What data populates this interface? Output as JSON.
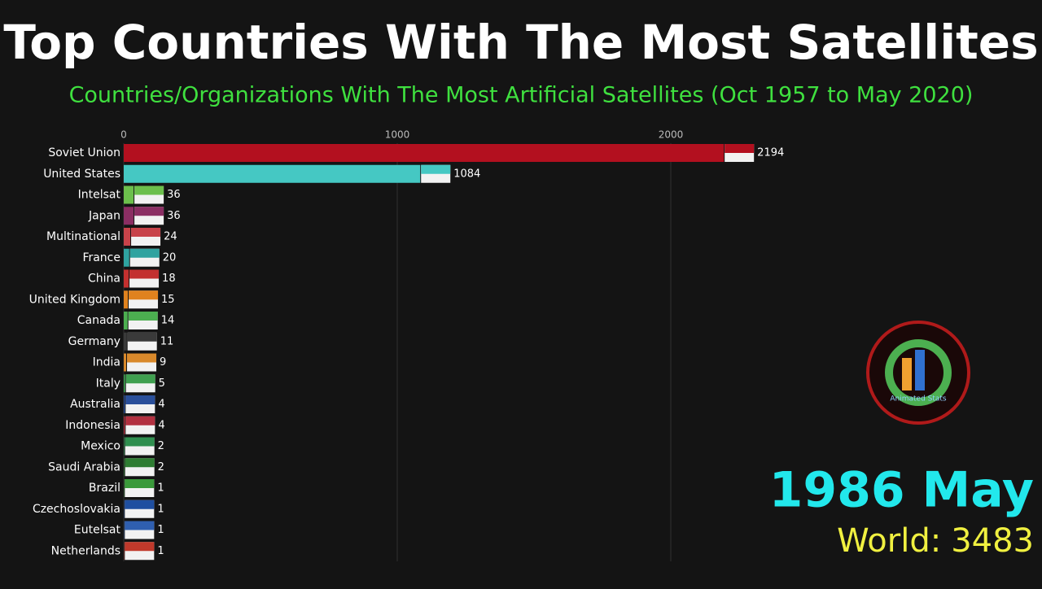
{
  "chart_data": {
    "type": "bar",
    "orientation": "horizontal",
    "title": "Top Countries With The Most Satellites",
    "subtitle": "Countries/Organizations With The Most Artificial Satellites (Oct 1957 to May 2020)",
    "categories": [
      "Soviet Union",
      "United States",
      "Intelsat",
      "Japan",
      "Multinational",
      "France",
      "China",
      "United Kingdom",
      "Canada",
      "Germany",
      "India",
      "Italy",
      "Australia",
      "Indonesia",
      "Mexico",
      "Saudi Arabia",
      "Brazil",
      "Czechoslovakia",
      "Eutelsat",
      "Netherlands"
    ],
    "values": [
      2194,
      1084,
      36,
      36,
      24,
      20,
      18,
      15,
      14,
      11,
      9,
      5,
      4,
      4,
      2,
      2,
      1,
      1,
      1,
      1
    ],
    "colors": [
      "#b3101f",
      "#45c8c3",
      "#6cbf4c",
      "#8b2e63",
      "#c8434a",
      "#2fa3a0",
      "#c3302f",
      "#e0821e",
      "#4caf50",
      "#3a3a3a",
      "#d9892b",
      "#3f9f4f",
      "#2a4f9a",
      "#b23040",
      "#2f8f4f",
      "#2e7d32",
      "#3a9a3a",
      "#1f4fa0",
      "#2f5fb0",
      "#c0392b"
    ],
    "xlim": [
      0,
      3000
    ],
    "xticks": [
      0,
      1000,
      2000
    ],
    "grid": true,
    "date_label": "1986 May",
    "total_name": "World:",
    "total": 3483,
    "logo_text": "Animated Stats"
  }
}
